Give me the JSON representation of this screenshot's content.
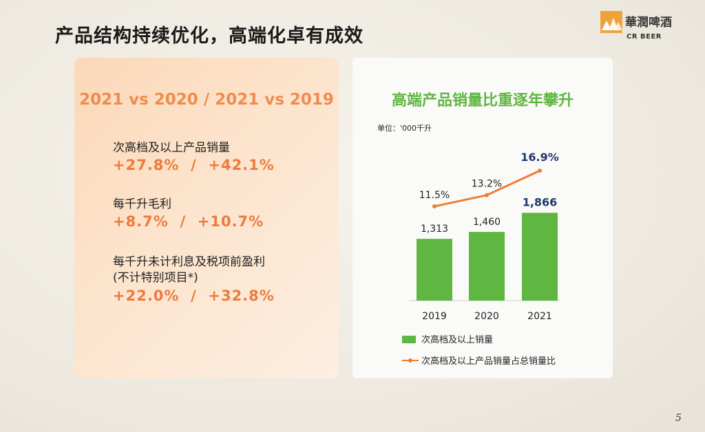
{
  "slide": {
    "title": "产品结构持续优化，高端化卓有成效",
    "page_number": "5"
  },
  "logo": {
    "name_cn": "華潤啤酒",
    "name_en": "CR BEER"
  },
  "summary": {
    "comparison_title": "2021 vs 2020 / 2021 vs 2019",
    "metrics": [
      {
        "label": "次高档及以上产品销量",
        "value": "+27.8%  /  +42.1%"
      },
      {
        "label": "每千升毛利",
        "value": "+8.7%  /  +10.7%"
      },
      {
        "label": "每千升未计利息及税项前盈利",
        "label_line2": "(不计特别项目*)",
        "value": "+22.0%  /  +32.8%"
      }
    ]
  },
  "chart_data": {
    "type": "bar",
    "title": "高端产品销量比重逐年攀升",
    "unit": "单位：'000千升",
    "categories": [
      "2019",
      "2020",
      "2021"
    ],
    "series": [
      {
        "name": "次高档及以上销量",
        "type": "bar",
        "values": [
          1313,
          1460,
          1866
        ],
        "labels": [
          "1,313",
          "1,460",
          "1,866"
        ],
        "color": "#5fb641"
      },
      {
        "name": "次高档及以上产品销量占总销量比",
        "type": "line",
        "values": [
          11.5,
          13.2,
          16.9
        ],
        "labels": [
          "11.5%",
          "13.2%",
          "16.9%"
        ],
        "color": "#ed7d31"
      }
    ],
    "highlight_label_color": "#1f3a6e",
    "grid": false,
    "legend": "bottom"
  }
}
